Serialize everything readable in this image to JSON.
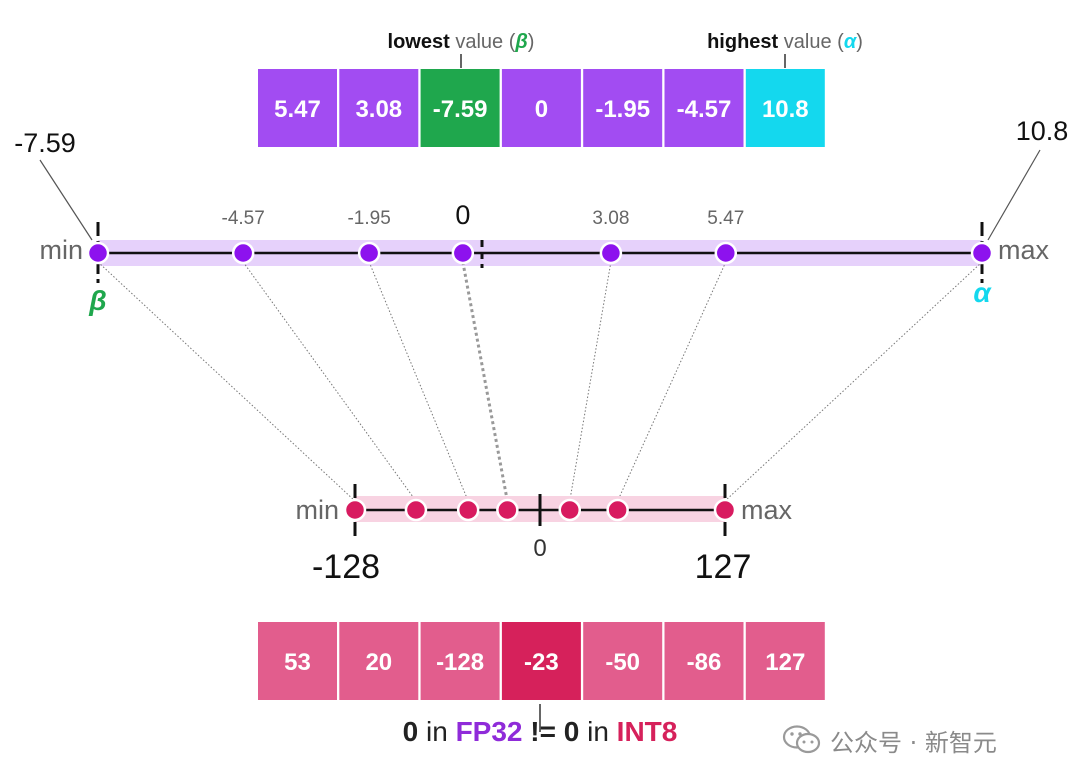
{
  "top_header": {
    "lowest_bold": "lowest",
    "lowest_rest": " value (",
    "beta": "β",
    "close": ")",
    "highest_bold": "highest",
    "highest_rest": " value (",
    "alpha": "α"
  },
  "fp32_values": [
    "5.47",
    "3.08",
    "-7.59",
    "0",
    "-1.95",
    "-4.57",
    "10.8"
  ],
  "fp32_lowest_index": 2,
  "fp32_highest_index": 6,
  "fp32_axis": {
    "min_label": "min",
    "max_label": "max",
    "min_value": "-7.59",
    "max_value": "10.8",
    "beta_label": "β",
    "alpha_label": "α",
    "points": [
      {
        "value": -7.59,
        "label": ""
      },
      {
        "value": -4.57,
        "label": "-4.57"
      },
      {
        "value": -1.95,
        "label": "-1.95"
      },
      {
        "value": 0,
        "label": "0"
      },
      {
        "value": 3.08,
        "label": "3.08"
      },
      {
        "value": 5.47,
        "label": "5.47"
      },
      {
        "value": 10.8,
        "label": ""
      }
    ],
    "range": [
      -7.59,
      10.8
    ]
  },
  "int8_axis": {
    "min_label": "min",
    "max_label": "max",
    "min_value": "-128",
    "max_value": "127",
    "zero_label": "0",
    "points": [
      -128,
      -86,
      -50,
      -23,
      20,
      53,
      127
    ],
    "range": [
      -128,
      127
    ]
  },
  "int8_values": [
    "53",
    "20",
    "-128",
    "-23",
    "-50",
    "-86",
    "127"
  ],
  "int8_highlight_index": 3,
  "footer": {
    "zero1": "0",
    "in1": " in ",
    "fp32": "FP32",
    "neq": " != ",
    "zero2": "0",
    "in2": " in ",
    "int8": "INT8"
  },
  "watermark": "公众号 · 新智元",
  "colors": {
    "purple": "#a24cf2",
    "green": "#1fa74d",
    "cyan": "#14d8ee",
    "pink": "#e25d8d",
    "pink_dark": "#d6215b",
    "dot_purple": "#8d12ee",
    "dot_pink": "#d81b60",
    "band_purple": "#e6d1fb",
    "band_pink": "#f8d3e2"
  }
}
